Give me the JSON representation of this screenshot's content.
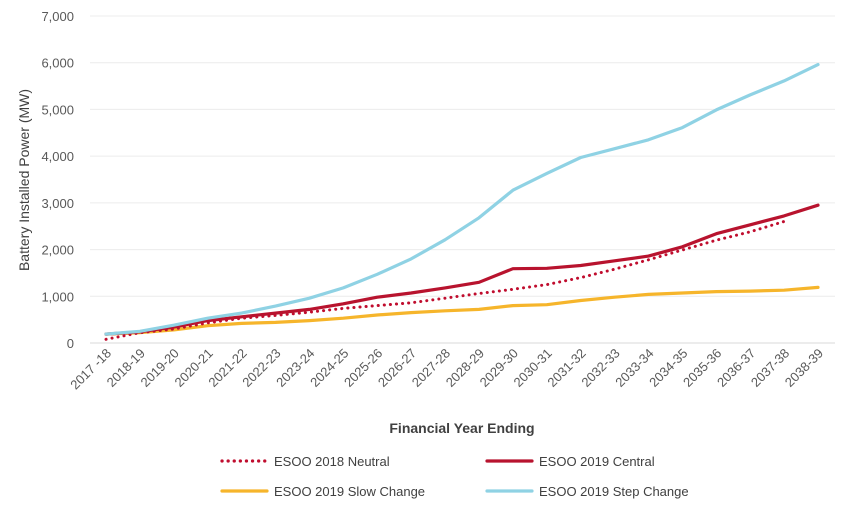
{
  "chart_data": {
    "type": "line",
    "title": "",
    "xlabel": "Financial Year Ending",
    "ylabel": "Battery Installed Power (MW)",
    "ylim": [
      0,
      7000
    ],
    "yticks": [
      0,
      1000,
      2000,
      3000,
      4000,
      5000,
      6000,
      7000
    ],
    "ytick_labels": [
      "0",
      "1,000",
      "2,000",
      "3,000",
      "4,000",
      "5,000",
      "6,000",
      "7,000"
    ],
    "grid": true,
    "legend_position": "bottom",
    "categories": [
      "2017 -18",
      "2018-19",
      "2019-20",
      "2020-21",
      "2021-22",
      "2022-23",
      "2023-24",
      "2024-25",
      "2025-26",
      "2026-27",
      "2027-28",
      "2028-29",
      "2029-30",
      "2030-31",
      "2031-32",
      "2032-33",
      "2033-34",
      "2034-35",
      "2035-36",
      "2036-37",
      "2037-38",
      "2038-39"
    ],
    "series": [
      {
        "name": "ESOO 2018 Neutral",
        "color": "#c00d2e",
        "style": "dotted",
        "values": [
          80,
          220,
          300,
          430,
          530,
          590,
          660,
          740,
          800,
          860,
          960,
          1060,
          1150,
          1250,
          1400,
          1580,
          1780,
          1990,
          2200,
          2380,
          2600,
          null
        ]
      },
      {
        "name": "ESOO 2019 Central",
        "color": "#b8132e",
        "style": "solid",
        "values": [
          190,
          240,
          340,
          480,
          560,
          640,
          720,
          840,
          980,
          1070,
          1180,
          1300,
          1590,
          1600,
          1660,
          1760,
          1860,
          2060,
          2340,
          2530,
          2720,
          2950
        ]
      },
      {
        "name": "ESOO 2019 Slow Change",
        "color": "#f6b52b",
        "style": "solid",
        "values": [
          190,
          220,
          280,
          370,
          420,
          440,
          480,
          530,
          600,
          650,
          690,
          720,
          800,
          820,
          910,
          980,
          1040,
          1070,
          1100,
          1110,
          1130,
          1190
        ]
      },
      {
        "name": "ESOO 2019 Step Change",
        "color": "#8fd2e4",
        "style": "solid",
        "values": [
          190,
          250,
          380,
          530,
          640,
          790,
          960,
          1180,
          1470,
          1800,
          2210,
          2680,
          3270,
          3630,
          3970,
          4160,
          4350,
          4610,
          4990,
          5310,
          5610,
          5960
        ]
      }
    ],
    "legend": [
      {
        "label": "ESOO 2018 Neutral",
        "series": 0
      },
      {
        "label": "ESOO 2019 Central",
        "series": 1
      },
      {
        "label": "ESOO 2019 Slow Change",
        "series": 2
      },
      {
        "label": "ESOO 2019 Step Change",
        "series": 3
      }
    ]
  }
}
